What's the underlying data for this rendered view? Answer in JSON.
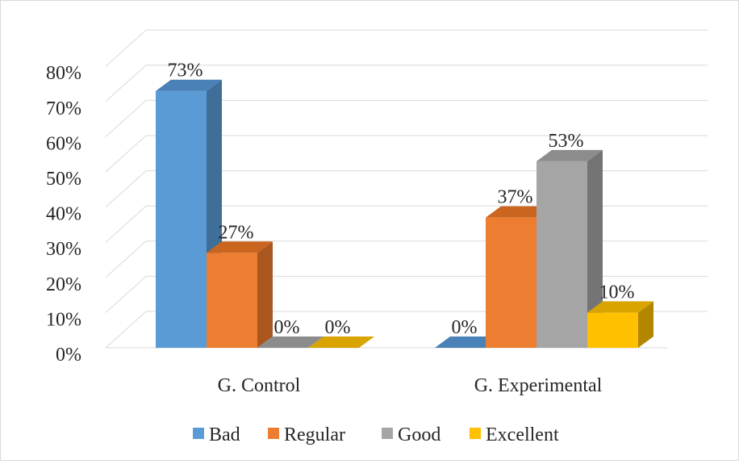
{
  "chart_data": {
    "type": "bar",
    "style": "3d-clustered-column",
    "categories": [
      "G. Control",
      "G. Experimental"
    ],
    "series": [
      {
        "name": "Bad",
        "values": [
          73,
          0
        ],
        "labels": [
          "73%",
          "0%"
        ],
        "color": "#5b9bd5",
        "side_color": "#3f6e99",
        "top_color": "#4a82b8"
      },
      {
        "name": "Regular",
        "values": [
          27,
          37
        ],
        "labels": [
          "27%",
          "37%"
        ],
        "color": "#ed7d31",
        "side_color": "#a9561f",
        "top_color": "#c9651f"
      },
      {
        "name": "Good",
        "values": [
          0,
          53
        ],
        "labels": [
          "0%",
          "53%"
        ],
        "color": "#a5a5a5",
        "side_color": "#747474",
        "top_color": "#8c8c8c"
      },
      {
        "name": "Excellent",
        "values": [
          0,
          10
        ],
        "labels": [
          "0%",
          "10%"
        ],
        "color": "#ffc000",
        "side_color": "#b38600",
        "top_color": "#d9a300"
      }
    ],
    "y_ticks": [
      "0%",
      "10%",
      "20%",
      "30%",
      "40%",
      "50%",
      "60%",
      "70%",
      "80%"
    ],
    "ylim": [
      0,
      80
    ],
    "y_unit": "%",
    "grid": true,
    "legend_position": "bottom",
    "title": "",
    "xlabel": "",
    "ylabel": ""
  }
}
